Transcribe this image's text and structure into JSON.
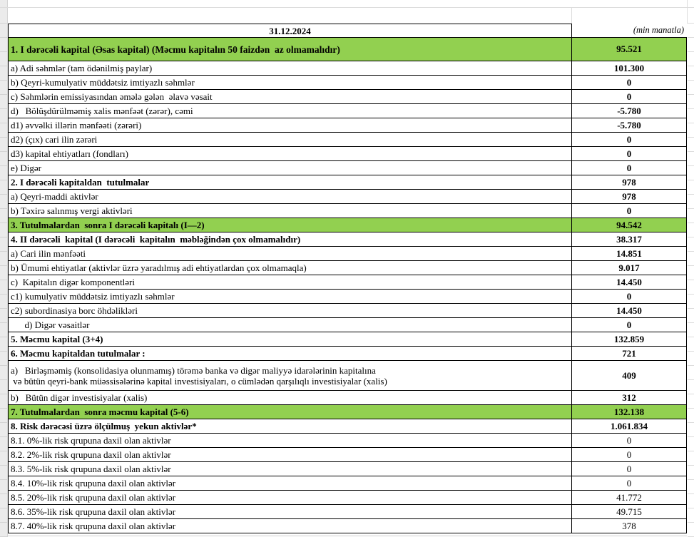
{
  "sheet": {
    "header": {
      "date": "31.12.2024",
      "unit_note": "(min manatla)"
    },
    "colors": {
      "highlight_green": "#92d050",
      "table_border": "#000000",
      "grid_line": "#dcdcdc",
      "margin_bg": "#ebebeb"
    },
    "rows": [
      {
        "label": "1. I dərəcəli kapital (Əsas kapital) (Məcmu kapitalın 50 faizdən  az olmamalıdır)",
        "value": "95.521",
        "kind": "green",
        "value_bold": true,
        "height": "tall"
      },
      {
        "label": "a) Adi səhmlər (tam ödənilmiş paylar)",
        "value": "101.300",
        "kind": "sub",
        "value_bold": true
      },
      {
        "label": "b) Qeyri-kumulyativ müddətsiz imtiyazlı səhmlər",
        "value": "0",
        "kind": "sub",
        "value_bold": true
      },
      {
        "label": "c) Səhmlərin emissiyasından əmələ gələn  əlavə vəsait",
        "value": "0",
        "kind": "sub",
        "value_bold": true
      },
      {
        "label": "d)   Bölüşdürülməmiş xalis mənfəət (zərər), cəmi",
        "value": "-5.780",
        "kind": "sub",
        "value_bold": true
      },
      {
        "label": "d1) əvvəlki illərin mənfəəti (zərəri)",
        "value": "-5.780",
        "kind": "sub",
        "value_bold": true
      },
      {
        "label": "d2) (çıx) cari ilin zərəri",
        "value": "0",
        "kind": "sub",
        "value_bold": true
      },
      {
        "label": "d3) kapital ehtiyatları (fondları)",
        "value": "0",
        "kind": "sub",
        "value_bold": true
      },
      {
        "label": "e) Digər",
        "value": "0",
        "kind": "sub",
        "value_bold": true
      },
      {
        "label": "2. I dərəcəli kapitaldan  tutulmalar",
        "value": "978",
        "kind": "section",
        "value_bold": true
      },
      {
        "label": "a) Qeyri-maddi aktivlər",
        "value": "978",
        "kind": "sub",
        "value_bold": true
      },
      {
        "label": "b) Təxirə salınmış vergi aktivləri",
        "value": "0",
        "kind": "sub",
        "value_bold": true
      },
      {
        "label": "3. Tutulmalardan  sonra I dərəcəli kapitalı (I—2)",
        "value": "94.542",
        "kind": "green",
        "value_bold": true
      },
      {
        "label": "4. II dərəcəli  kapital (I dərəcəli  kapitalın  məbləğindən çox olmamalıdır)",
        "value": "38.317",
        "kind": "section",
        "value_bold": true
      },
      {
        "label": "a) Cari ilin mənfəəti",
        "value": "14.851",
        "kind": "sub",
        "value_bold": true
      },
      {
        "label": "b) Ümumi ehtiyatlar (aktivlər üzrə yaradılmış adi ehtiyatlardan çox olmamaqla)",
        "value": "9.017",
        "kind": "sub",
        "value_bold": true
      },
      {
        "label": "c)  Kapitalın digər komponentləri",
        "value": "14.450",
        "kind": "sub",
        "value_bold": true
      },
      {
        "label": "c1) kumulyativ müddətsiz imtiyazlı səhmlər",
        "value": "0",
        "kind": "sub",
        "value_bold": true
      },
      {
        "label": "c2) subordinasiya borc öhdəlikləri",
        "value": "14.450",
        "kind": "sub",
        "value_bold": true
      },
      {
        "label": "      d) Digər vəsaitlər",
        "value": "0",
        "kind": "sub",
        "value_bold": true
      },
      {
        "label": "5. Məcmu kapital (3+4)",
        "value": "132.859",
        "kind": "section",
        "value_bold": true
      },
      {
        "label": "6. Məcmu kapitaldan tutulmalar :",
        "value": "721",
        "kind": "section",
        "value_bold": true
      },
      {
        "label": "a)   Birləşməmiş (konsolidasiya olunmamış) törəmə banka və digər maliyyə idarələrinin kapitalına\n və bütün qeyri-bank müəssisələrinə kapital investisiyaları, o cümlədən qarşılıqlı investisiyalar (xalis)",
        "value": "409",
        "kind": "sub",
        "value_bold": true,
        "height": "twoline"
      },
      {
        "label": "b)   Bütün digər investisiyalar (xalis)",
        "value": "312",
        "kind": "sub",
        "value_bold": true
      },
      {
        "label": "7. Tutulmalardan  sonra məcmu kapital (5-6)",
        "value": "132.138",
        "kind": "green",
        "value_bold": true
      },
      {
        "label": "8. Risk dərəcəsi üzrə ölçülmuş  yekun aktivlər*",
        "value": "1.061.834",
        "kind": "section",
        "value_bold": true
      },
      {
        "label": "8.1. 0%-lik risk qrupuna daxil olan aktivlər",
        "value": "0",
        "kind": "sub",
        "value_bold": false
      },
      {
        "label": "8.2. 2%-lik risk qrupuna daxil olan aktivlər",
        "value": "0",
        "kind": "sub",
        "value_bold": false
      },
      {
        "label": "8.3. 5%-lik risk qrupuna daxil olan aktivlər",
        "value": "0",
        "kind": "sub",
        "value_bold": false
      },
      {
        "label": "8.4. 10%-lik risk qrupuna daxil olan aktivlər",
        "value": "0",
        "kind": "sub",
        "value_bold": false
      },
      {
        "label": "8.5. 20%-lik risk qrupuna daxil olan aktivlər",
        "value": "41.772",
        "kind": "sub",
        "value_bold": false
      },
      {
        "label": "8.6. 35%-lik risk qrupuna daxil olan aktivlər",
        "value": "49.715",
        "kind": "sub",
        "value_bold": false
      },
      {
        "label": "8.7. 40%-lik risk qrupuna daxil olan aktivlər",
        "value": "378",
        "kind": "sub",
        "value_bold": false
      }
    ]
  }
}
